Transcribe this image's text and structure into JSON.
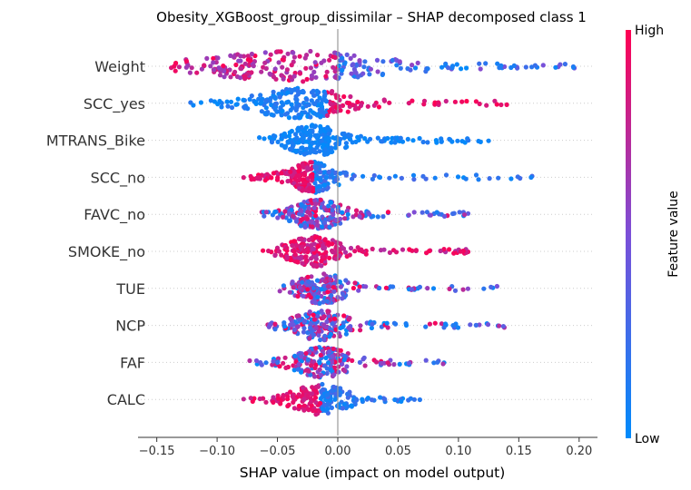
{
  "chart_data": {
    "type": "scatter",
    "subtype": "shap-beeswarm",
    "title": "Obesity_XGBoost_group_dissimilar – SHAP decomposed class 1",
    "xlabel": "SHAP value (impact on model output)",
    "xlim": [
      -0.155,
      0.215
    ],
    "xticks": [
      -0.15,
      -0.1,
      -0.05,
      0.0,
      0.05,
      0.1,
      0.15,
      0.2
    ],
    "xtick_labels": [
      "−0.15",
      "−0.10",
      "−0.05",
      "0.00",
      "0.05",
      "0.10",
      "0.15",
      "0.20"
    ],
    "zero_line": true,
    "grid": false,
    "features": [
      {
        "name": "Weight",
        "range": [
          -0.138,
          0.196
        ],
        "core": [
          -0.07,
          0.0
        ],
        "spread": 0.35,
        "high_side": "left",
        "n": 260
      },
      {
        "name": "SCC_yes",
        "range": [
          -0.122,
          0.14
        ],
        "core": [
          -0.045,
          -0.015
        ],
        "spread": 0.35,
        "high_side": "right",
        "n": 240
      },
      {
        "name": "MTRANS_Bike",
        "range": [
          -0.065,
          0.125
        ],
        "core": [
          -0.025,
          -0.012
        ],
        "spread": 0.32,
        "high_side": "none",
        "n": 230
      },
      {
        "name": "SCC_no",
        "range": [
          -0.078,
          0.161
        ],
        "core": [
          -0.025,
          -0.015
        ],
        "spread": 0.3,
        "high_side": "left",
        "n": 230
      },
      {
        "name": "FAVC_no",
        "range": [
          -0.063,
          0.108
        ],
        "core": [
          -0.022,
          -0.012
        ],
        "spread": 0.3,
        "high_side": "mixed",
        "n": 220
      },
      {
        "name": "SMOKE_no",
        "range": [
          -0.062,
          0.108
        ],
        "core": [
          -0.025,
          -0.014
        ],
        "spread": 0.3,
        "high_side": "all",
        "n": 220
      },
      {
        "name": "TUE",
        "range": [
          -0.048,
          0.132
        ],
        "core": [
          -0.018,
          -0.008
        ],
        "spread": 0.28,
        "high_side": "mixed",
        "n": 210
      },
      {
        "name": "NCP",
        "range": [
          -0.058,
          0.138
        ],
        "core": [
          -0.02,
          -0.008
        ],
        "spread": 0.28,
        "high_side": "mixed",
        "n": 210
      },
      {
        "name": "FAF",
        "range": [
          -0.073,
          0.088
        ],
        "core": [
          -0.018,
          -0.006
        ],
        "spread": 0.28,
        "high_side": "mixed",
        "n": 200
      },
      {
        "name": "CALC",
        "range": [
          -0.078,
          0.068
        ],
        "core": [
          -0.02,
          -0.008
        ],
        "spread": 0.26,
        "high_side": "left",
        "n": 200
      }
    ],
    "colorbar": {
      "label": "Feature value",
      "high_label": "High",
      "low_label": "Low",
      "high_color": "#ff0052",
      "mid_color": "#7b4fd8",
      "low_color": "#008bfb"
    }
  }
}
